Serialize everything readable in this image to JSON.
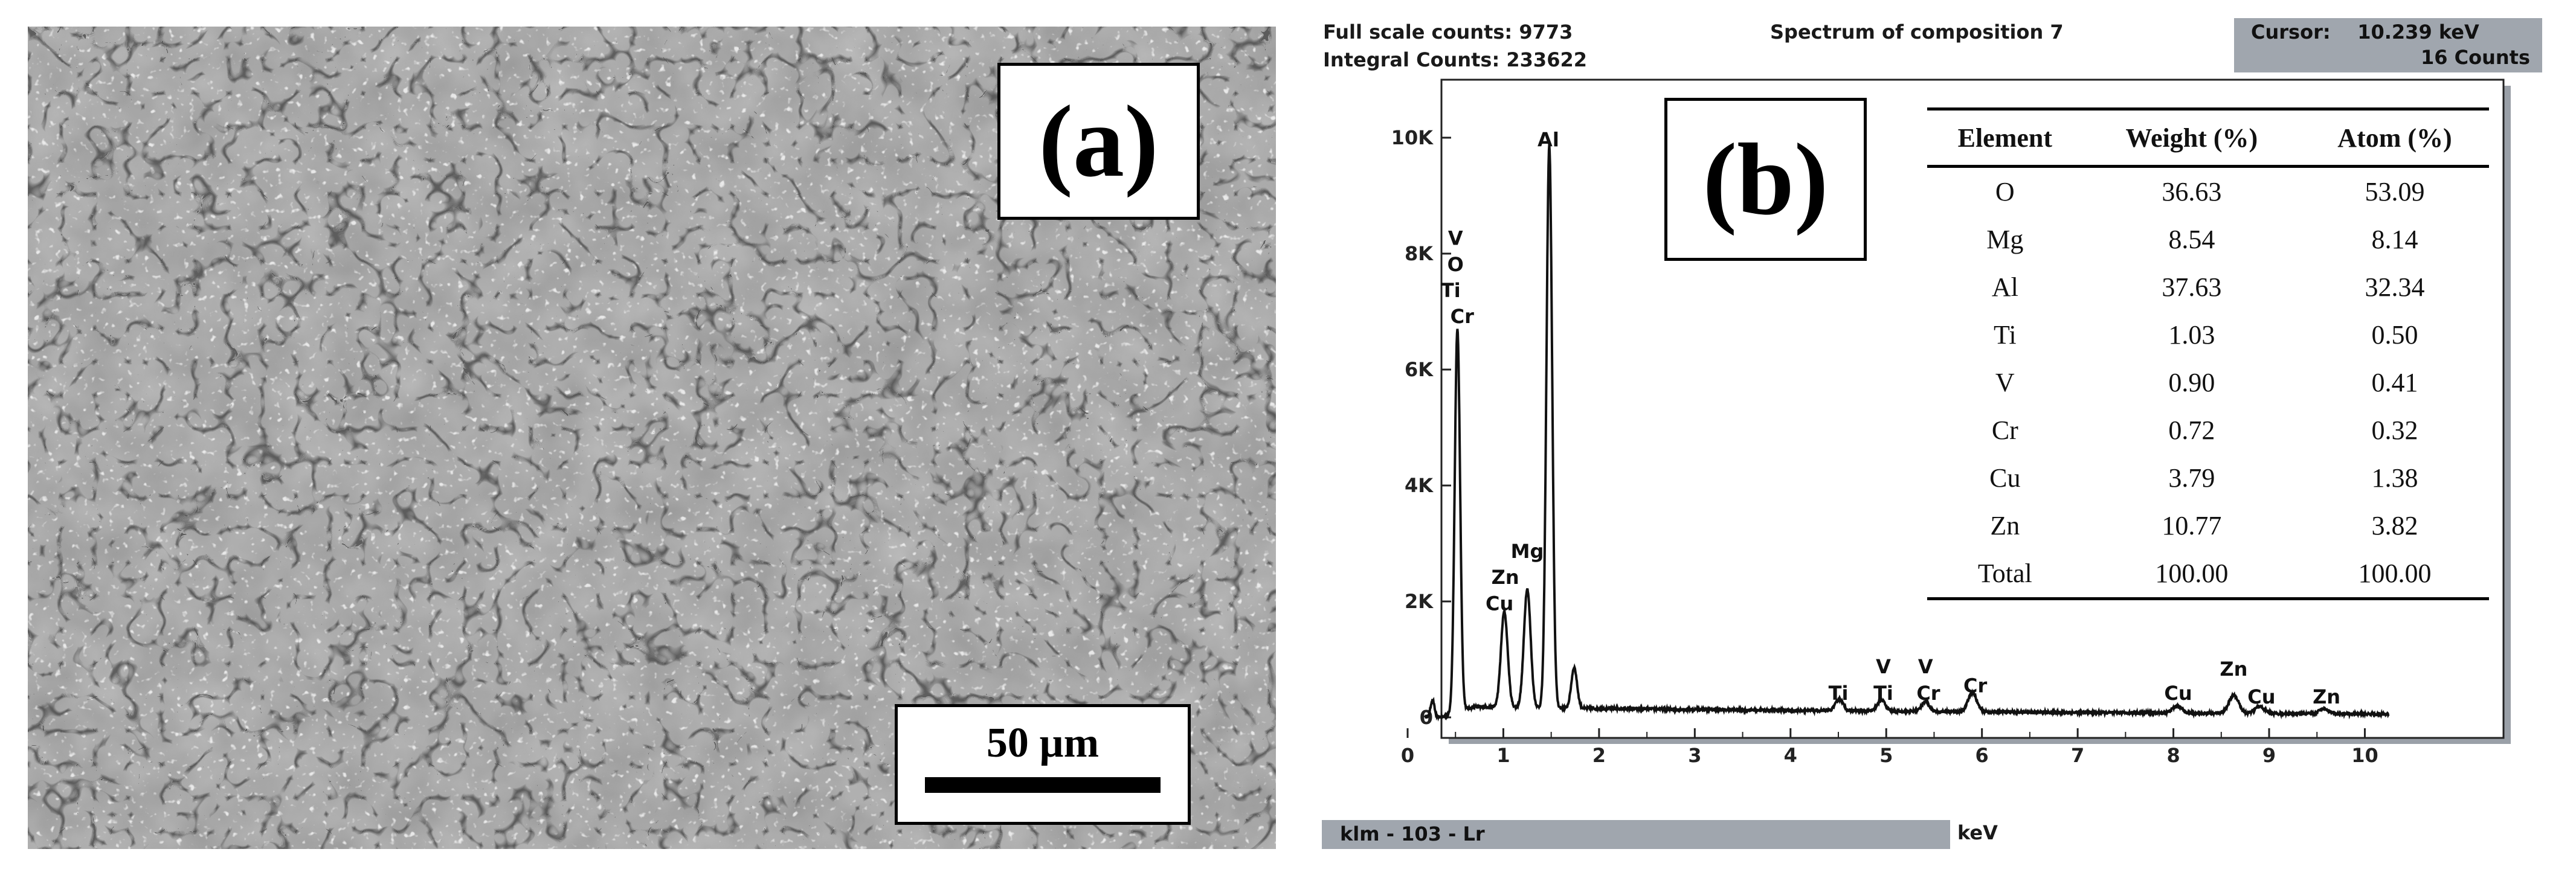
{
  "panel_a": {
    "label": "(a)",
    "scale_bar": "50 µm"
  },
  "panel_b": {
    "label": "(b)",
    "header": {
      "full_scale": "Full scale counts: 9773",
      "integral": "Integral Counts: 233622",
      "title": "Spectrum of composition 7",
      "cursor_line1": "Cursor:    10.239 keV",
      "cursor_line2": "16 Counts"
    },
    "status_bar": "klm - 103 - Lr",
    "x_unit": "keV",
    "table": {
      "headers": [
        "Element",
        "Weight (%)",
        "Atom (%)"
      ],
      "rows": [
        [
          "O",
          "36.63",
          "53.09"
        ],
        [
          "Mg",
          "8.54",
          "8.14"
        ],
        [
          "Al",
          "37.63",
          "32.34"
        ],
        [
          "Ti",
          "1.03",
          "0.50"
        ],
        [
          "V",
          "0.90",
          "0.41"
        ],
        [
          "Cr",
          "0.72",
          "0.32"
        ],
        [
          "Cu",
          "3.79",
          "1.38"
        ],
        [
          "Zn",
          "10.77",
          "3.82"
        ],
        [
          "Total",
          "100.00",
          "100.00"
        ]
      ]
    }
  },
  "chart_data": {
    "type": "line",
    "title": "Spectrum of composition 7",
    "xlabel": "keV",
    "ylabel": "",
    "xlim": [
      0,
      10.3
    ],
    "ylim": [
      0,
      11000
    ],
    "x_ticks": [
      0,
      1,
      2,
      3,
      4,
      5,
      6,
      7,
      8,
      9,
      10
    ],
    "y_ticks": [
      {
        "value": 0,
        "label": "0"
      },
      {
        "value": 2000,
        "label": "2K"
      },
      {
        "value": 4000,
        "label": "4K"
      },
      {
        "value": 6000,
        "label": "6K"
      },
      {
        "value": 8000,
        "label": "8K"
      },
      {
        "value": 10000,
        "label": "10K"
      }
    ],
    "baseline": 150,
    "peaks": [
      {
        "x": 0.26,
        "y": 300,
        "w": 0.02
      },
      {
        "x": 0.52,
        "y": 6600,
        "w": 0.028
      },
      {
        "x": 1.01,
        "y": 1650,
        "w": 0.035
      },
      {
        "x": 1.25,
        "y": 2050,
        "w": 0.035
      },
      {
        "x": 1.48,
        "y": 9700,
        "w": 0.03
      },
      {
        "x": 1.74,
        "y": 700,
        "w": 0.03
      },
      {
        "x": 4.51,
        "y": 200,
        "w": 0.04
      },
      {
        "x": 4.95,
        "y": 190,
        "w": 0.04
      },
      {
        "x": 5.41,
        "y": 170,
        "w": 0.04
      },
      {
        "x": 5.9,
        "y": 330,
        "w": 0.045
      },
      {
        "x": 8.04,
        "y": 120,
        "w": 0.05
      },
      {
        "x": 8.63,
        "y": 320,
        "w": 0.05
      },
      {
        "x": 8.9,
        "y": 120,
        "w": 0.05
      },
      {
        "x": 9.57,
        "y": 90,
        "w": 0.05
      }
    ],
    "annotations": [
      {
        "text": "V",
        "x": 0.5,
        "y": 8150
      },
      {
        "text": "O",
        "x": 0.5,
        "y": 7700
      },
      {
        "text": "Ti",
        "x": 0.45,
        "y": 7250
      },
      {
        "text": "Cr",
        "x": 0.57,
        "y": 6800
      },
      {
        "text": "Al",
        "x": 1.47,
        "y": 9850
      },
      {
        "text": "Mg",
        "x": 1.25,
        "y": 2750
      },
      {
        "text": "Zn",
        "x": 1.02,
        "y": 2300
      },
      {
        "text": "Cu",
        "x": 0.96,
        "y": 1850
      },
      {
        "text": "Ti",
        "x": 4.5,
        "y": 300
      },
      {
        "text": "V",
        "x": 4.97,
        "y": 760
      },
      {
        "text": "Ti",
        "x": 4.97,
        "y": 300
      },
      {
        "text": "V",
        "x": 5.41,
        "y": 760
      },
      {
        "text": "Cr",
        "x": 5.44,
        "y": 300
      },
      {
        "text": "Cr",
        "x": 5.93,
        "y": 430
      },
      {
        "text": "Cu",
        "x": 8.05,
        "y": 300
      },
      {
        "text": "Zn",
        "x": 8.63,
        "y": 720
      },
      {
        "text": "Cu",
        "x": 8.92,
        "y": 240
      },
      {
        "text": "Zn",
        "x": 9.6,
        "y": 240
      }
    ]
  }
}
